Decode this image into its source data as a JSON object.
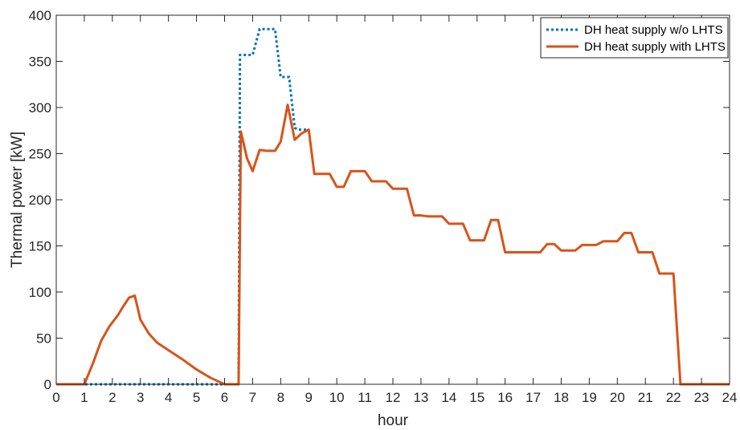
{
  "chart_data": {
    "type": "line",
    "xlabel": "hour",
    "ylabel": "Thermal power [kW]",
    "xlim": [
      0,
      24
    ],
    "ylim": [
      0,
      400
    ],
    "xticks": [
      0,
      1,
      2,
      3,
      4,
      5,
      6,
      7,
      8,
      9,
      10,
      11,
      12,
      13,
      14,
      15,
      16,
      17,
      18,
      19,
      20,
      21,
      22,
      23,
      24
    ],
    "yticks": [
      0,
      50,
      100,
      150,
      200,
      250,
      300,
      350,
      400
    ],
    "grid": false,
    "legend_position": "top-right",
    "series": [
      {
        "name": "DH heat supply w/o LHTS",
        "color": "#0072BD",
        "style": "dotted",
        "x": [
          0,
          1,
          2,
          3,
          4,
          5,
          6,
          6.5,
          6.55,
          7.0,
          7.25,
          7.35,
          7.8,
          8.0,
          8.1,
          8.3,
          8.5,
          8.6,
          8.75,
          9.0
        ],
        "y": [
          0,
          0,
          0,
          0,
          0,
          0,
          0,
          0,
          357,
          357,
          385,
          385,
          385,
          333,
          333,
          333,
          278,
          276,
          276,
          276
        ]
      },
      {
        "name": "DH heat supply with LHTS",
        "color": "#D95319",
        "style": "solid",
        "x": [
          0,
          1.0,
          1.3,
          1.6,
          1.9,
          2.2,
          2.4,
          2.6,
          2.8,
          3.0,
          3.3,
          3.6,
          4.0,
          4.5,
          5.0,
          5.5,
          6.0,
          6.5,
          6.58,
          6.8,
          7.0,
          7.25,
          7.5,
          7.8,
          8.0,
          8.25,
          8.5,
          8.75,
          9.0,
          9.2,
          9.6,
          9.75,
          10.0,
          10.25,
          10.5,
          10.75,
          11.0,
          11.25,
          11.5,
          11.75,
          12.0,
          12.25,
          12.5,
          12.75,
          13.0,
          13.25,
          13.5,
          13.75,
          14.0,
          14.25,
          14.5,
          14.75,
          15.0,
          15.25,
          15.5,
          15.75,
          16.0,
          16.25,
          16.5,
          16.75,
          17.0,
          17.25,
          17.5,
          17.75,
          18.0,
          18.25,
          18.5,
          18.75,
          19.0,
          19.25,
          19.5,
          19.75,
          20.0,
          20.25,
          20.5,
          20.75,
          21.0,
          21.25,
          21.5,
          21.75,
          22.0,
          22.25,
          22.5,
          23.0,
          24.0
        ],
        "y": [
          0,
          0,
          22,
          47,
          63,
          75,
          85,
          94,
          96,
          70,
          55,
          45,
          37,
          27,
          16,
          7,
          0,
          0,
          274,
          245,
          231,
          254,
          253,
          253,
          263,
          303,
          265,
          272,
          276,
          228,
          228,
          228,
          214,
          214,
          231,
          231,
          231,
          220,
          220,
          220,
          212,
          212,
          212,
          183,
          183,
          182,
          182,
          182,
          174,
          174,
          174,
          156,
          156,
          156,
          178,
          178,
          143,
          143,
          143,
          143,
          143,
          143,
          152,
          152,
          145,
          145,
          145,
          151,
          151,
          151,
          155,
          155,
          155,
          164,
          164,
          143,
          143,
          143,
          120,
          120,
          120,
          0,
          0,
          0,
          0
        ]
      }
    ]
  }
}
